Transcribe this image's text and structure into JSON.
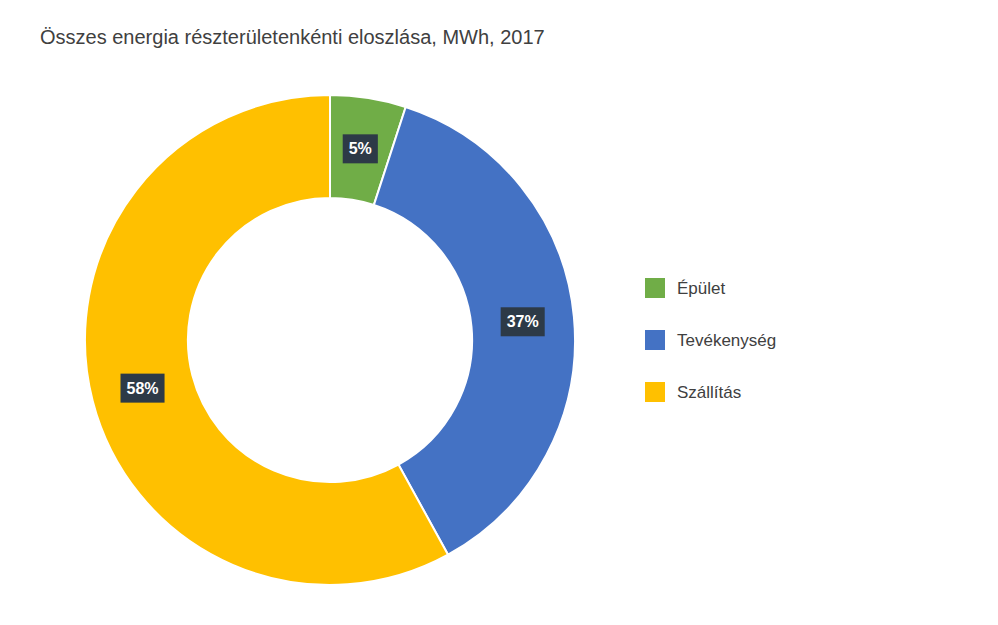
{
  "chart_data": {
    "type": "donut",
    "title": "Összes energia részterületenkénti eloszlása, MWh, 2017",
    "categories": [
      "Épület",
      "Tevékenység",
      "Szállítás"
    ],
    "values": [
      5,
      37,
      58
    ],
    "value_labels": [
      "5%",
      "37%",
      "58%"
    ],
    "colors": [
      "#70ad47",
      "#4472c4",
      "#ffc000"
    ],
    "data_labels": true,
    "legend": "right"
  }
}
